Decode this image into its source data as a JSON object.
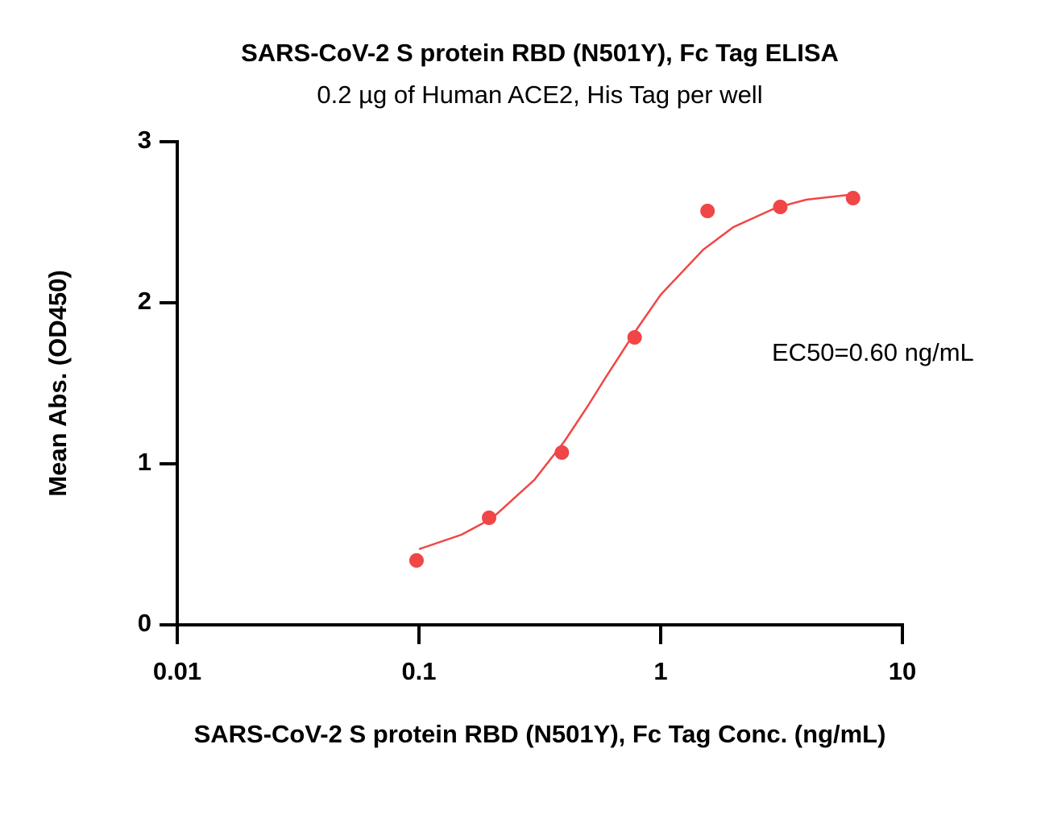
{
  "chart_data": {
    "type": "scatter",
    "title": "SARS-CoV-2 S protein RBD (N501Y), Fc Tag ELISA",
    "subtitle": "0.2 µg of Human ACE2, His Tag per well",
    "x_label": "SARS-CoV-2 S protein RBD (N501Y), Fc Tag Conc. (ng/mL)",
    "y_label": "Mean Abs. (OD450)",
    "annotation": "EC50=0.60 ng/mL",
    "xscale": "log",
    "xlim": [
      0.01,
      10
    ],
    "xticks": [
      0.01,
      0.1,
      1,
      10
    ],
    "ylim": [
      0,
      3
    ],
    "yticks": [
      0,
      1,
      2,
      3
    ],
    "color": "#f04646",
    "points": {
      "x": [
        0.0977,
        0.195,
        0.39,
        0.78,
        1.5625,
        3.125,
        6.25
      ],
      "values": [
        0.4,
        0.665,
        1.07,
        1.785,
        2.57,
        2.595,
        2.65
      ]
    },
    "fit": {
      "x": [
        0.1,
        0.15,
        0.2,
        0.3,
        0.4,
        0.5,
        0.6,
        0.8,
        1,
        1.5,
        2,
        3,
        4,
        6
      ],
      "values": [
        0.47,
        0.56,
        0.66,
        0.9,
        1.14,
        1.36,
        1.55,
        1.84,
        2.05,
        2.33,
        2.47,
        2.59,
        2.64,
        2.67
      ]
    }
  }
}
